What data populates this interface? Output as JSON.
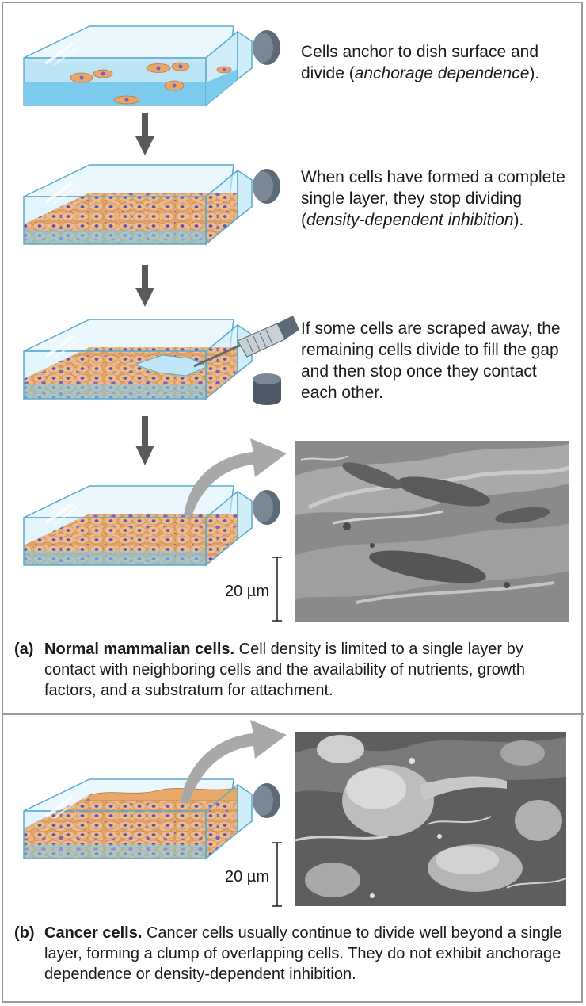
{
  "steps": [
    {
      "text_before": "Cells anchor to dish surface and divide (",
      "italic": "anchorage dependence",
      "text_after": ")."
    },
    {
      "text_before": "When cells have formed a complete single layer, they stop dividing (",
      "italic": "density-dependent inhibition",
      "text_after": ")."
    },
    {
      "text_before": "If some cells are scraped away, the remaining cells divide to fill the gap and then stop once they contact each other.",
      "italic": "",
      "text_after": ""
    }
  ],
  "panel_a": {
    "letter": "(a)",
    "title": "Normal mammalian cells.",
    "description": "Cell density is limited to a single layer by contact with neighboring cells and the availability of nutrients, growth factors, and a substratum for attachment.",
    "scale_label": "20 µm"
  },
  "panel_b": {
    "letter": "(b)",
    "title": "Cancer cells.",
    "description": "Cancer cells usually continue to divide well beyond a single layer, forming a clump of overlapping cells. They do not exhibit anchorage dependence or density-dependent inhibition.",
    "scale_label": "20 µm"
  },
  "colors": {
    "medium": "#8fd3ef",
    "medium_light": "#d6f0fa",
    "cell": "#e8a86a",
    "nucleus": "#6f63c4",
    "flask_edge": "#5aa9cf",
    "cap": "#5c6a78",
    "arrow": "#5a5a5a",
    "curved_arrow": "#a8a8a8"
  }
}
